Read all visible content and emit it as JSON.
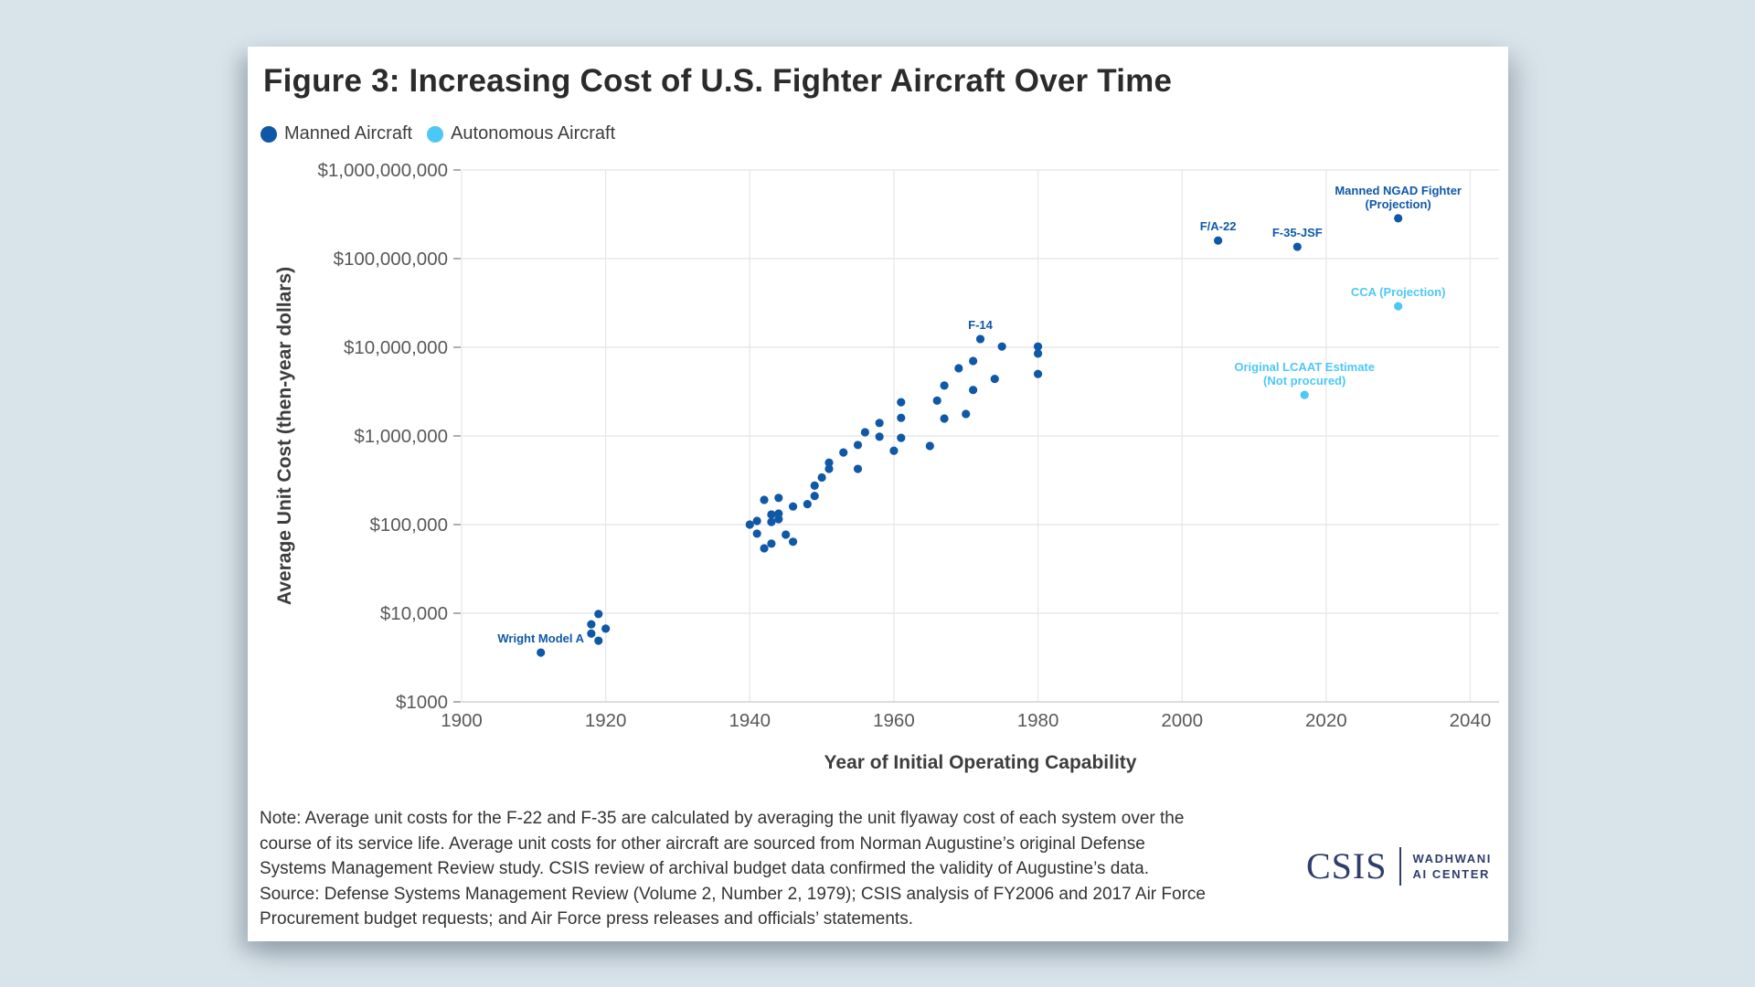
{
  "page": {
    "background_color": "#d9e3ea",
    "card_color": "#ffffff"
  },
  "header": {
    "title": "Figure 3: Increasing Cost of U.S. Fighter Aircraft Over Time"
  },
  "legend": {
    "items": [
      {
        "label": "Manned Aircraft",
        "color": "#0f58a8"
      },
      {
        "label": "Autonomous Aircraft",
        "color": "#4dc8f6"
      }
    ]
  },
  "chart_data": {
    "type": "scatter",
    "xlabel": "Year of Initial Operating Capability",
    "ylabel": "Average Unit Cost (then-year dollars)",
    "x_ticks": [
      1900,
      1920,
      1940,
      1960,
      1980,
      2000,
      2020,
      2040
    ],
    "y_ticks": [
      {
        "value": 1000,
        "label": "$1000"
      },
      {
        "value": 10000,
        "label": "$10,000"
      },
      {
        "value": 100000,
        "label": "$100,000"
      },
      {
        "value": 1000000,
        "label": "$1,000,000"
      },
      {
        "value": 10000000,
        "label": "$10,000,000"
      },
      {
        "value": 100000000,
        "label": "$100,000,000"
      },
      {
        "value": 1000000000,
        "label": "$1,000,000,000"
      }
    ],
    "xlim": [
      1900,
      2044
    ],
    "ylim": [
      1000,
      1000000000
    ],
    "y_scale": "log",
    "grid": true,
    "legend_position": "top-left",
    "series": [
      {
        "name": "Manned Aircraft",
        "color": "#0f58a8",
        "points": [
          {
            "x": 1911,
            "y": 3600,
            "label": "Wright Model A"
          },
          {
            "x": 1918,
            "y": 7500
          },
          {
            "x": 1919,
            "y": 9800
          },
          {
            "x": 1918,
            "y": 5900
          },
          {
            "x": 1920,
            "y": 6700
          },
          {
            "x": 1919,
            "y": 4900
          },
          {
            "x": 1940,
            "y": 100000
          },
          {
            "x": 1941,
            "y": 110000
          },
          {
            "x": 1941,
            "y": 79000
          },
          {
            "x": 1942,
            "y": 54000
          },
          {
            "x": 1942,
            "y": 190000
          },
          {
            "x": 1943,
            "y": 130000
          },
          {
            "x": 1943,
            "y": 61000
          },
          {
            "x": 1943,
            "y": 107000
          },
          {
            "x": 1944,
            "y": 200000
          },
          {
            "x": 1944,
            "y": 133000
          },
          {
            "x": 1944,
            "y": 115000
          },
          {
            "x": 1945,
            "y": 77000
          },
          {
            "x": 1946,
            "y": 160000
          },
          {
            "x": 1946,
            "y": 64000
          },
          {
            "x": 1948,
            "y": 170000
          },
          {
            "x": 1949,
            "y": 275000
          },
          {
            "x": 1949,
            "y": 210000
          },
          {
            "x": 1950,
            "y": 340000
          },
          {
            "x": 1951,
            "y": 500000
          },
          {
            "x": 1951,
            "y": 425000
          },
          {
            "x": 1953,
            "y": 650000
          },
          {
            "x": 1955,
            "y": 790000
          },
          {
            "x": 1955,
            "y": 425000
          },
          {
            "x": 1956,
            "y": 1100000
          },
          {
            "x": 1958,
            "y": 1400000
          },
          {
            "x": 1958,
            "y": 980000
          },
          {
            "x": 1960,
            "y": 680000
          },
          {
            "x": 1961,
            "y": 2400000
          },
          {
            "x": 1961,
            "y": 1600000
          },
          {
            "x": 1961,
            "y": 950000
          },
          {
            "x": 1965,
            "y": 770000
          },
          {
            "x": 1966,
            "y": 2500000
          },
          {
            "x": 1967,
            "y": 3700000
          },
          {
            "x": 1967,
            "y": 1570000
          },
          {
            "x": 1969,
            "y": 5800000
          },
          {
            "x": 1970,
            "y": 1770000
          },
          {
            "x": 1971,
            "y": 3300000
          },
          {
            "x": 1971,
            "y": 7000000
          },
          {
            "x": 1972,
            "y": 12400000,
            "label": "F-14"
          },
          {
            "x": 1974,
            "y": 4400000
          },
          {
            "x": 1975,
            "y": 10200000
          },
          {
            "x": 1980,
            "y": 10200000
          },
          {
            "x": 1980,
            "y": 8500000
          },
          {
            "x": 1980,
            "y": 5000000
          },
          {
            "x": 2005,
            "y": 160000000,
            "label": "F/A-22"
          },
          {
            "x": 2016,
            "y": 136000000,
            "label": "F-35-JSF"
          },
          {
            "x": 2030,
            "y": 285000000,
            "label": "Manned NGAD Fighter\n(Projection)"
          }
        ]
      },
      {
        "name": "Autonomous Aircraft",
        "color": "#4dc8f6",
        "points": [
          {
            "x": 2017,
            "y": 2900000,
            "label": "Original LCAAT Estimate\n(Not procured)"
          },
          {
            "x": 2030,
            "y": 29000000,
            "label": "CCA (Projection)"
          }
        ]
      }
    ]
  },
  "footer": {
    "note_lines": [
      "Note: Average unit costs for the F-22 and F-35 are calculated by averaging the unit flyaway cost of each system over the",
      "course of its service life. Average unit costs for other aircraft are sourced from Norman Augustine’s original Defense",
      "Systems Management Review study. CSIS review of archival budget data confirmed the validity of Augustine’s data.",
      "Source: Defense Systems Management Review (Volume 2, Number 2, 1979); CSIS analysis of FY2006 and 2017 Air Force",
      "Procurement budget requests; and Air Force press releases and officials’ statements."
    ],
    "logo": {
      "wordmark": "CSIS",
      "unit_line1": "WADHWANI",
      "unit_line2": "AI CENTER",
      "color": "#2e3d6b"
    }
  }
}
